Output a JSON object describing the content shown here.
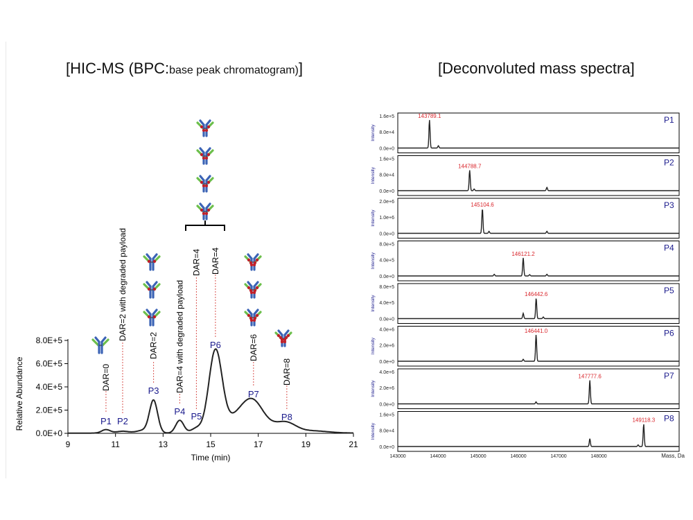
{
  "titles": {
    "left_prefix": "[HIC-MS (BPC:",
    "left_small": "base peak chromatogram)",
    "left_suffix": "]",
    "right": "[Deconvoluted mass spectra]"
  },
  "chart_data": [
    {
      "type": "line",
      "name": "HIC-MS base peak chromatogram",
      "xlabel": "Time (min)",
      "ylabel": "Relative Abundance",
      "xlim": [
        9,
        21
      ],
      "ylim": [
        0,
        800000
      ],
      "xticks": [
        "9",
        "11",
        "13",
        "15",
        "17",
        "19",
        "21"
      ],
      "yticks": [
        "0.0E+0",
        "2.0E+5",
        "4.0E+5",
        "6.0E+5",
        "8.0E+5"
      ],
      "baseline": 2000,
      "peaks": [
        {
          "label": "P1",
          "rt": 10.6,
          "height": 30000,
          "width": 0.18,
          "annotation": "DAR=0",
          "antibodies": 1
        },
        {
          "label": "P2",
          "rt": 11.3,
          "height": 16000,
          "width": 0.25,
          "annotation": "DAR=2 with degraded payload",
          "antibodies": 0
        },
        {
          "label": "P3",
          "rt": 12.6,
          "height": 275000,
          "width": 0.17,
          "annotation": "DAR=2",
          "antibodies": 3
        },
        {
          "label": "P4",
          "rt": 13.7,
          "height": 110000,
          "width": 0.17,
          "annotation": "DAR=4 with degraded payload",
          "antibodies": 0
        },
        {
          "label": "P5",
          "rt": 14.4,
          "height": 40000,
          "width": 0.22,
          "annotation": "DAR=4",
          "antibodies": 0
        },
        {
          "label": "P6",
          "rt": 15.2,
          "height": 700000,
          "width": 0.28,
          "annotation": "DAR=4",
          "antibodies": 4
        },
        {
          "label": "P7",
          "rt": 16.8,
          "height": 245000,
          "width": 0.45,
          "annotation": "DAR=6",
          "antibodies": 3
        },
        {
          "label": "P8",
          "rt": 18.2,
          "height": 75000,
          "width": 0.4,
          "annotation": "DAR=8",
          "antibodies": 1
        }
      ],
      "extra_components": [
        {
          "rt": 12.2,
          "height": 25000,
          "width": 0.3
        },
        {
          "rt": 16.1,
          "height": 120000,
          "width": 0.5
        },
        {
          "rt": 17.7,
          "height": 30000,
          "width": 0.4
        },
        {
          "rt": 19.2,
          "height": 20000,
          "width": 0.7
        }
      ],
      "bracket_group": [
        "P5",
        "P6"
      ]
    },
    {
      "type": "line",
      "name": "Deconvoluted mass spectra",
      "xlabel": "Mass, Da",
      "ylabel": "Intensity",
      "xlim": [
        143000,
        150000
      ],
      "xticks": [
        "143000",
        "144000",
        "145000",
        "146000",
        "147000",
        "148000"
      ],
      "panels": [
        {
          "label": "P1",
          "ymax_label": "1.6e+5",
          "ymid_label": "8.0e+4",
          "ymin_label": "0.0e+0",
          "mass_label": "143789.1",
          "main_mass": 143789,
          "main_rel": 0.85,
          "minor": [
            [
              144010,
              0.07
            ]
          ]
        },
        {
          "label": "P2",
          "ymax_label": "1.6e+5",
          "ymid_label": "8.0e+4",
          "ymin_label": "0.0e+0",
          "mass_label": "144788.7",
          "main_mass": 144789,
          "main_rel": 0.62,
          "minor": [
            [
              144900,
              0.05
            ],
            [
              146710,
              0.1
            ]
          ]
        },
        {
          "label": "P3",
          "ymax_label": "2.0e+6",
          "ymid_label": "1.0e+6",
          "ymin_label": "0.0e+0",
          "mass_label": "145104.6",
          "main_mass": 145105,
          "main_rel": 0.75,
          "minor": [
            [
              145270,
              0.06
            ],
            [
              146710,
              0.06
            ]
          ]
        },
        {
          "label": "P4",
          "ymax_label": "8.0e+5",
          "ymid_label": "4.0e+5",
          "ymin_label": "0.0e+0",
          "mass_label": "146121.2",
          "main_mass": 146121,
          "main_rel": 0.55,
          "minor": [
            [
              145400,
              0.05
            ],
            [
              146280,
              0.04
            ],
            [
              146710,
              0.05
            ]
          ]
        },
        {
          "label": "P5",
          "ymax_label": "8.0e+5",
          "ymid_label": "4.0e+5",
          "ymin_label": "0.0e+0",
          "mass_label": "146442.6",
          "main_mass": 146443,
          "main_rel": 0.62,
          "minor": [
            [
              146121,
              0.16
            ],
            [
              146620,
              0.05
            ]
          ]
        },
        {
          "label": "P6",
          "ymax_label": "4.0e+6",
          "ymid_label": "2.0e+6",
          "ymin_label": "0.0e+0",
          "mass_label": "146441.0",
          "main_mass": 146441,
          "main_rel": 0.8,
          "minor": [
            [
              146121,
              0.06
            ]
          ]
        },
        {
          "label": "P7",
          "ymax_label": "4.0e+6",
          "ymid_label": "2.0e+6",
          "ymin_label": "0.0e+0",
          "mass_label": "147777.6",
          "main_mass": 147778,
          "main_rel": 0.72,
          "minor": [
            [
              146440,
              0.06
            ]
          ]
        },
        {
          "label": "P8",
          "ymax_label": "1.6e+5",
          "ymid_label": "8.0e+4",
          "ymin_label": "0.0e+0",
          "mass_label": "149118.3",
          "main_mass": 149118,
          "main_rel": 0.68,
          "minor": [
            [
              147778,
              0.24
            ],
            [
              148980,
              0.05
            ]
          ]
        }
      ]
    }
  ],
  "colors": {
    "trace": "#222222",
    "peak_label": "#1a1a8c",
    "dashed_line": "#d9534f",
    "mass_label": "#d9262c",
    "ab_heavy": "#3b63b5",
    "ab_light": "#6cbf4b",
    "ab_payload": "#c0202a",
    "axis": "#000000"
  }
}
